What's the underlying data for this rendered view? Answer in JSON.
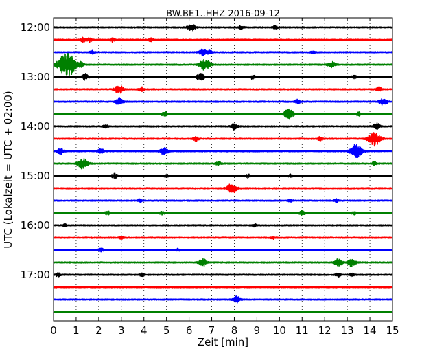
{
  "chart_data": {
    "type": "line",
    "title": "BW.BE1..HHZ 2016-09-12",
    "xlabel": "Zeit  [min]",
    "ylabel": "UTC (Lokalzeit = UTC + 02:00)",
    "xlim": [
      0,
      15
    ],
    "x_ticks": [
      "0",
      "1",
      "2",
      "3",
      "4",
      "5",
      "6",
      "7",
      "8",
      "9",
      "10",
      "11",
      "12",
      "13",
      "14",
      "15"
    ],
    "y_ticks": [
      {
        "label": "12:00",
        "row": 0
      },
      {
        "label": "13:00",
        "row": 4
      },
      {
        "label": "14:00",
        "row": 8
      },
      {
        "label": "15:00",
        "row": 12
      },
      {
        "label": "16:00",
        "row": 16
      },
      {
        "label": "17:00",
        "row": 20
      }
    ],
    "grid": "vertical-dotted",
    "trace_colors": [
      "#000000",
      "#ff0000",
      "#0000ff",
      "#008000"
    ],
    "traces": [
      {
        "start": "12:00",
        "color": "#000000",
        "events": [
          [
            6.1,
            0.6
          ],
          [
            8.3,
            0.3
          ],
          [
            9.8,
            0.25
          ]
        ]
      },
      {
        "start": "12:15",
        "color": "#ff0000",
        "events": [
          [
            1.3,
            0.35
          ],
          [
            1.6,
            0.3
          ],
          [
            2.6,
            0.3
          ],
          [
            4.3,
            0.25
          ]
        ]
      },
      {
        "start": "12:30",
        "color": "#0000ff",
        "events": [
          [
            1.7,
            0.25
          ],
          [
            6.6,
            0.5
          ],
          [
            6.9,
            0.3
          ],
          [
            11.5,
            0.25
          ]
        ]
      },
      {
        "start": "12:45",
        "color": "#008000",
        "events": [
          [
            0.5,
            1.5
          ],
          [
            0.8,
            0.9
          ],
          [
            1.2,
            0.4
          ],
          [
            6.7,
            0.9
          ],
          [
            12.3,
            0.5
          ]
        ]
      },
      {
        "start": "13:00",
        "color": "#000000",
        "events": [
          [
            1.4,
            0.5
          ],
          [
            6.5,
            0.6
          ],
          [
            8.8,
            0.3
          ],
          [
            13.3,
            0.3
          ]
        ]
      },
      {
        "start": "13:15",
        "color": "#ff0000",
        "events": [
          [
            2.9,
            0.7
          ],
          [
            3.9,
            0.35
          ],
          [
            14.4,
            0.35
          ]
        ]
      },
      {
        "start": "13:30",
        "color": "#0000ff",
        "events": [
          [
            2.9,
            0.6
          ],
          [
            10.8,
            0.35
          ],
          [
            14.6,
            0.6
          ]
        ]
      },
      {
        "start": "13:45",
        "color": "#008000",
        "events": [
          [
            4.9,
            0.4
          ],
          [
            10.4,
            0.8
          ],
          [
            13.5,
            0.3
          ]
        ]
      },
      {
        "start": "14:00",
        "color": "#000000",
        "events": [
          [
            2.3,
            0.25
          ],
          [
            8.0,
            0.5
          ],
          [
            14.3,
            0.5
          ]
        ]
      },
      {
        "start": "14:15",
        "color": "#ff0000",
        "events": [
          [
            6.3,
            0.35
          ],
          [
            11.8,
            0.3
          ],
          [
            14.2,
            1.1
          ]
        ]
      },
      {
        "start": "14:30",
        "color": "#0000ff",
        "events": [
          [
            0.3,
            0.5
          ],
          [
            2.1,
            0.4
          ],
          [
            4.9,
            0.6
          ],
          [
            13.4,
            1.1
          ]
        ]
      },
      {
        "start": "14:45",
        "color": "#008000",
        "events": [
          [
            1.3,
            0.9
          ],
          [
            7.3,
            0.3
          ],
          [
            14.2,
            0.25
          ]
        ]
      },
      {
        "start": "15:00",
        "color": "#000000",
        "events": [
          [
            2.7,
            0.4
          ],
          [
            5.0,
            0.25
          ],
          [
            8.6,
            0.3
          ],
          [
            10.5,
            0.25
          ]
        ]
      },
      {
        "start": "15:15",
        "color": "#ff0000",
        "events": [
          [
            7.9,
            0.8
          ]
        ]
      },
      {
        "start": "15:30",
        "color": "#0000ff",
        "events": [
          [
            3.8,
            0.25
          ],
          [
            10.5,
            0.25
          ],
          [
            12.5,
            0.25
          ]
        ]
      },
      {
        "start": "15:45",
        "color": "#008000",
        "events": [
          [
            2.4,
            0.3
          ],
          [
            4.8,
            0.3
          ],
          [
            11.0,
            0.4
          ],
          [
            13.3,
            0.3
          ]
        ]
      },
      {
        "start": "16:00",
        "color": "#000000",
        "events": [
          [
            0.5,
            0.2
          ],
          [
            8.9,
            0.2
          ]
        ]
      },
      {
        "start": "16:15",
        "color": "#ff0000",
        "events": [
          [
            3.0,
            0.2
          ],
          [
            9.7,
            0.2
          ]
        ]
      },
      {
        "start": "16:30",
        "color": "#0000ff",
        "events": [
          [
            2.1,
            0.3
          ],
          [
            5.5,
            0.2
          ]
        ]
      },
      {
        "start": "16:45",
        "color": "#008000",
        "events": [
          [
            6.6,
            0.6
          ],
          [
            12.6,
            0.6
          ],
          [
            13.2,
            0.6
          ]
        ]
      },
      {
        "start": "17:00",
        "color": "#000000",
        "events": [
          [
            0.2,
            0.3
          ],
          [
            3.9,
            0.2
          ],
          [
            12.6,
            0.3
          ],
          [
            13.2,
            0.25
          ]
        ]
      },
      {
        "start": "17:15",
        "color": "#ff0000",
        "events": []
      },
      {
        "start": "17:30",
        "color": "#0000ff",
        "events": [
          [
            8.1,
            0.5
          ]
        ]
      },
      {
        "start": "17:45",
        "color": "#008000",
        "events": []
      }
    ]
  }
}
